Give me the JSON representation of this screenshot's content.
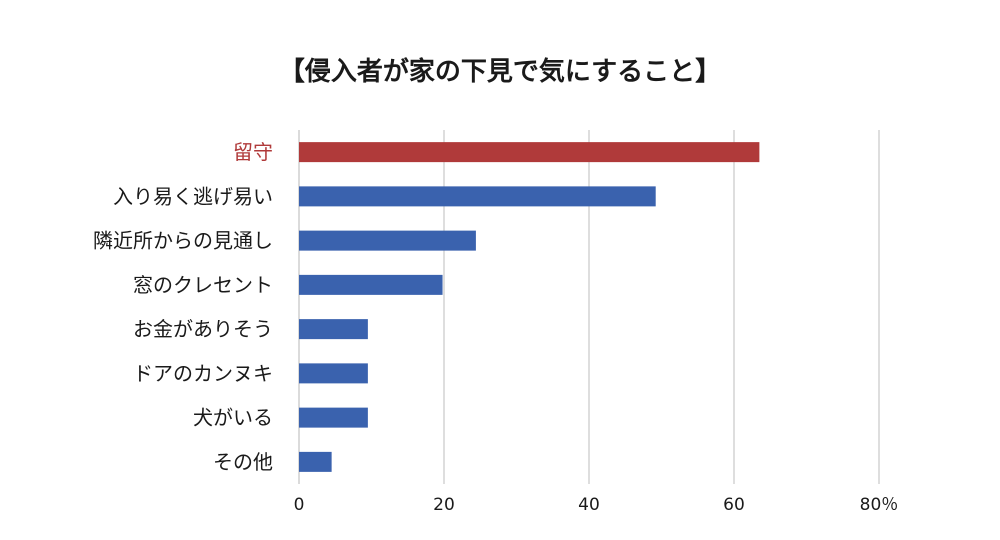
{
  "chart_data": {
    "type": "bar",
    "orientation": "horizontal",
    "title": "【侵入者が家の下見で気にすること】",
    "categories": [
      "留守",
      "入り易く逃げ易い",
      "隣近所からの見通し",
      "窓のクレセント",
      "お金がありそう",
      "ドアのカンヌキ",
      "犬がいる",
      "その他"
    ],
    "values": [
      63.5,
      49.2,
      24.4,
      19.8,
      9.5,
      9.5,
      9.5,
      4.5
    ],
    "highlight_index": 0,
    "xlim": [
      0,
      80
    ],
    "ticks": [
      0,
      20,
      40,
      60,
      80
    ],
    "tick_labels": [
      "0",
      "20",
      "40",
      "60",
      "80％"
    ],
    "grid": true,
    "colors": {
      "bar": "#3a62ae",
      "highlight": "#b03a3a",
      "highlight_label": "#b03a3a"
    }
  }
}
